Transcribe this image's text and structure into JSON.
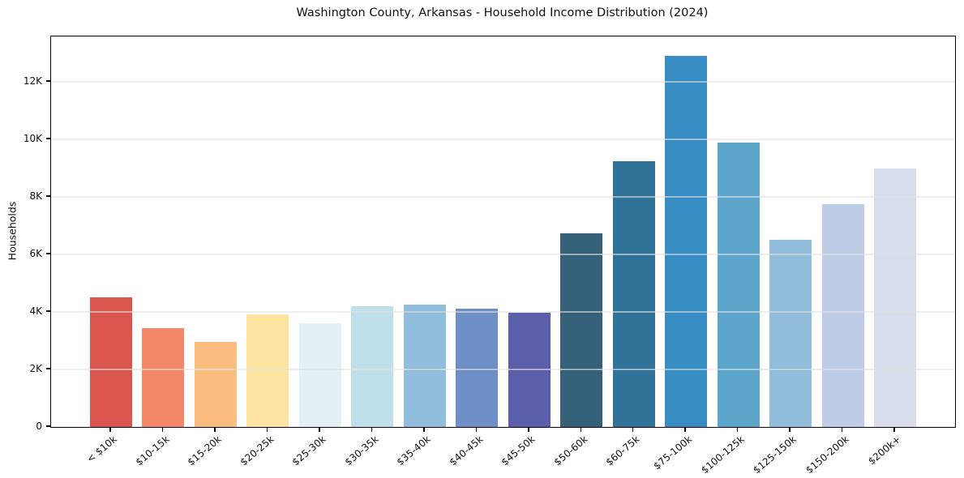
{
  "chart_data": {
    "type": "bar",
    "title": "Washington County, Arkansas - Household Income Distribution (2024)",
    "xlabel": "",
    "ylabel": "Households",
    "categories": [
      "< $10k",
      "$10-15k",
      "$15-20k",
      "$20-25k",
      "$25-30k",
      "$30-35k",
      "$35-40k",
      "$40-45k",
      "$45-50k",
      "$50-60k",
      "$60-75k",
      "$75-100k",
      "$100-125k",
      "$125-150k",
      "$150-200k",
      "$200k+"
    ],
    "values": [
      4500,
      3430,
      2970,
      3920,
      3600,
      4190,
      4250,
      4120,
      3980,
      6740,
      9240,
      12910,
      9890,
      6510,
      7760,
      8990
    ],
    "bar_colors": [
      "#da554d",
      "#f48768",
      "#fabd7e",
      "#fde3a0",
      "#e3f1f5",
      "#bfdfeb",
      "#8fbddb",
      "#6d8fc5",
      "#5b5fab",
      "#34607a",
      "#2f7399",
      "#378cc3",
      "#5aa5c9",
      "#92bcdb",
      "#bccde5",
      "#d9dcec"
    ],
    "ylim": [
      0,
      13580
    ],
    "yticks": {
      "values": [
        0,
        2000,
        4000,
        6000,
        8000,
        10000,
        12000
      ],
      "labels": [
        "0",
        "2K",
        "4K",
        "6K",
        "8K",
        "10K",
        "12K"
      ]
    },
    "grid": "horizontal, light gray, no vertical lines",
    "legend": "none"
  },
  "colors": {
    "background": "#ffffff",
    "spine": "#000000",
    "grid": "#ececec",
    "text": "#0f0f0f"
  }
}
